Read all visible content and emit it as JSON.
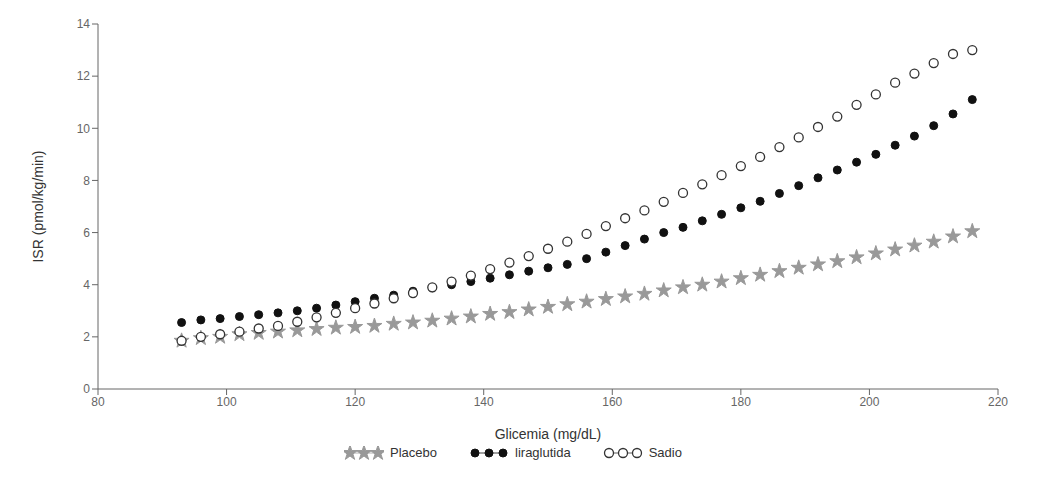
{
  "chart_data": {
    "type": "scatter",
    "xlabel": "Glicemia (mg/dL)",
    "ylabel": "ISR (pmol/kg/min)",
    "xlim": [
      80,
      220
    ],
    "ylim": [
      0,
      14
    ],
    "xticks": [
      80,
      100,
      120,
      140,
      160,
      180,
      200,
      220
    ],
    "yticks": [
      0,
      2,
      4,
      6,
      8,
      10,
      12,
      14
    ],
    "grid": false,
    "legend": "bottom",
    "x": [
      93,
      96,
      99,
      102,
      105,
      108,
      111,
      114,
      117,
      120,
      123,
      126,
      129,
      132,
      135,
      138,
      141,
      144,
      147,
      150,
      153,
      156,
      159,
      162,
      165,
      168,
      171,
      174,
      177,
      180,
      183,
      186,
      189,
      192,
      195,
      198,
      201,
      204,
      207,
      210,
      213,
      216
    ],
    "series": [
      {
        "name": "Placebo",
        "color": "#999999",
        "marker": "star",
        "values": [
          1.85,
          1.95,
          2.0,
          2.1,
          2.15,
          2.2,
          2.25,
          2.3,
          2.35,
          2.38,
          2.42,
          2.5,
          2.55,
          2.62,
          2.7,
          2.78,
          2.88,
          2.95,
          3.05,
          3.15,
          3.25,
          3.35,
          3.45,
          3.55,
          3.65,
          3.78,
          3.9,
          4.0,
          4.12,
          4.25,
          4.38,
          4.52,
          4.65,
          4.78,
          4.9,
          5.05,
          5.2,
          5.35,
          5.5,
          5.65,
          5.85,
          6.05
        ]
      },
      {
        "name": "liraglutida",
        "color": "#111111",
        "marker": "circle",
        "values": [
          2.55,
          2.65,
          2.7,
          2.78,
          2.85,
          2.92,
          3.0,
          3.1,
          3.22,
          3.35,
          3.48,
          3.6,
          3.75,
          3.88,
          4.0,
          4.12,
          4.25,
          4.38,
          4.52,
          4.65,
          4.78,
          5.0,
          5.25,
          5.5,
          5.75,
          6.0,
          6.2,
          6.45,
          6.7,
          6.95,
          7.2,
          7.5,
          7.8,
          8.1,
          8.4,
          8.7,
          9.0,
          9.35,
          9.7,
          10.1,
          10.55,
          11.1
        ]
      },
      {
        "name": "Sadio",
        "color": "#333333",
        "marker": "open_circle",
        "values": [
          1.85,
          2.0,
          2.1,
          2.2,
          2.32,
          2.42,
          2.58,
          2.75,
          2.92,
          3.1,
          3.28,
          3.48,
          3.68,
          3.9,
          4.12,
          4.35,
          4.6,
          4.85,
          5.1,
          5.38,
          5.65,
          5.95,
          6.25,
          6.55,
          6.85,
          7.18,
          7.52,
          7.85,
          8.2,
          8.55,
          8.9,
          9.28,
          9.65,
          10.05,
          10.45,
          10.9,
          11.3,
          11.75,
          12.1,
          12.5,
          12.85,
          13.0
        ]
      }
    ]
  }
}
